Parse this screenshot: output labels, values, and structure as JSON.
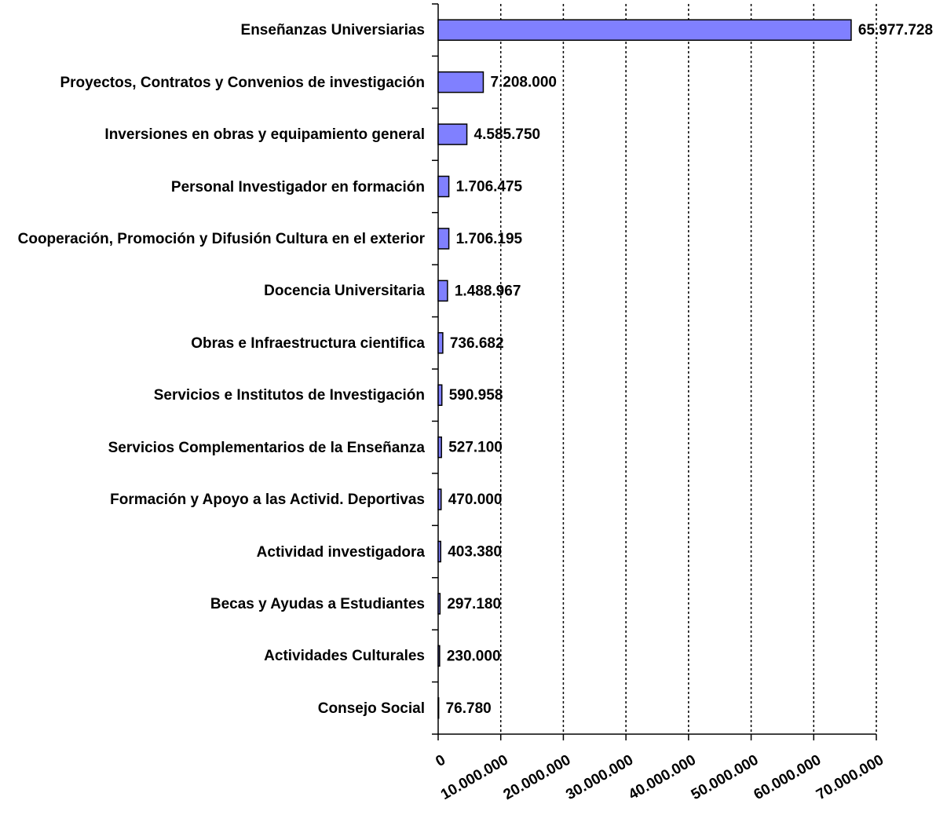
{
  "chart_data": {
    "type": "bar",
    "orientation": "horizontal",
    "categories": [
      "Enseñanzas Universiarias",
      "Proyectos, Contratos y Convenios de investigación",
      "Inversiones en obras y equipamiento general",
      "Personal Investigador en formación",
      "Cooperación, Promoción y Difusión Cultura en el exterior",
      "Docencia Universitaria",
      "Obras e Infraestructura cientifica",
      "Servicios e Institutos de Investigación",
      "Servicios Complementarios de la Enseñanza",
      "Formación y Apoyo a las Activid. Deportivas",
      "Actividad investigadora",
      "Becas y Ayudas a Estudiantes",
      "Actividades Culturales",
      "Consejo Social"
    ],
    "values": [
      65977728,
      7208000,
      4585750,
      1706475,
      1706195,
      1488967,
      736682,
      590958,
      527100,
      470000,
      403380,
      297180,
      230000,
      76780
    ],
    "value_labels": [
      "65.977.728",
      "7.208.000",
      "4.585.750",
      "1.706.475",
      "1.706.195",
      "1.488.967",
      "736.682",
      "590.958",
      "527.100",
      "470.000",
      "403.380",
      "297.180",
      "230.000",
      "76.780"
    ],
    "color": "#8080ff",
    "xlim": [
      0,
      70000000
    ],
    "xticks": [
      0,
      {
        "value": 10000000,
        "label": "10.000.000"
      },
      {
        "value": 20000000,
        "label": "20.000.000"
      },
      {
        "value": 30000000,
        "label": "30.000.000"
      },
      {
        "value": 40000000,
        "label": "40.000.000"
      },
      {
        "value": 50000000,
        "label": "50.000.000"
      },
      {
        "value": 60000000,
        "label": "60.000.000"
      },
      {
        "value": 70000000,
        "label": "70.000.000"
      }
    ],
    "grid": true
  }
}
